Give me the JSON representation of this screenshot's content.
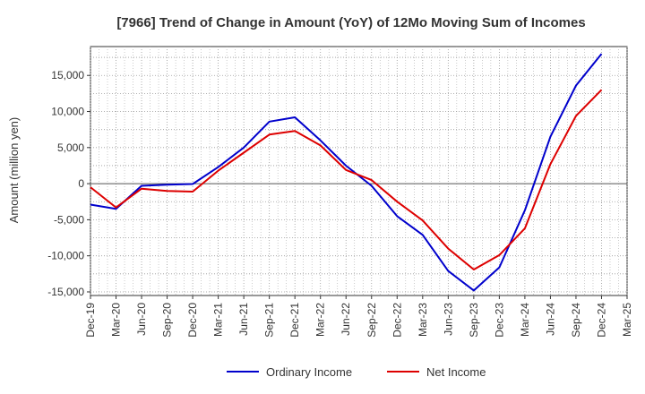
{
  "chart_data": {
    "type": "line",
    "title": "[7966]  Trend of Change in Amount (YoY) of 12Mo Moving Sum of Incomes",
    "xlabel": "",
    "ylabel": "Amount (million yen)",
    "categories": [
      "Dec-19",
      "Mar-20",
      "Jun-20",
      "Sep-20",
      "Dec-20",
      "Mar-21",
      "Jun-21",
      "Sep-21",
      "Dec-21",
      "Mar-22",
      "Jun-22",
      "Sep-22",
      "Dec-22",
      "Mar-23",
      "Jun-23",
      "Sep-23",
      "Dec-23",
      "Mar-24",
      "Jun-24",
      "Sep-24",
      "Dec-24",
      "Mar-25"
    ],
    "yticks": [
      -15000,
      -10000,
      -5000,
      0,
      5000,
      10000,
      15000
    ],
    "ytick_labels": [
      "-15,000",
      "-10,000",
      "-5,000",
      "0",
      "5,000",
      "10,000",
      "15,000"
    ],
    "ylim": [
      -15500,
      19000
    ],
    "grid": true,
    "legend_position": "bottom",
    "series": [
      {
        "name": "Ordinary Income",
        "color": "#0000cc",
        "values": [
          -2900,
          -3500,
          -300,
          -150,
          -50,
          2300,
          5000,
          8600,
          9200,
          6000,
          2500,
          -300,
          -4500,
          -7100,
          -12100,
          -14800,
          -11600,
          -3700,
          6500,
          13600,
          18000,
          null
        ]
      },
      {
        "name": "Net Income",
        "color": "#dd0000",
        "values": [
          -500,
          -3300,
          -700,
          -1000,
          -1100,
          1800,
          4300,
          6800,
          7300,
          5300,
          1900,
          500,
          -2500,
          -5100,
          -9000,
          -11900,
          -9900,
          -6200,
          2700,
          9400,
          13000,
          null
        ]
      }
    ]
  }
}
